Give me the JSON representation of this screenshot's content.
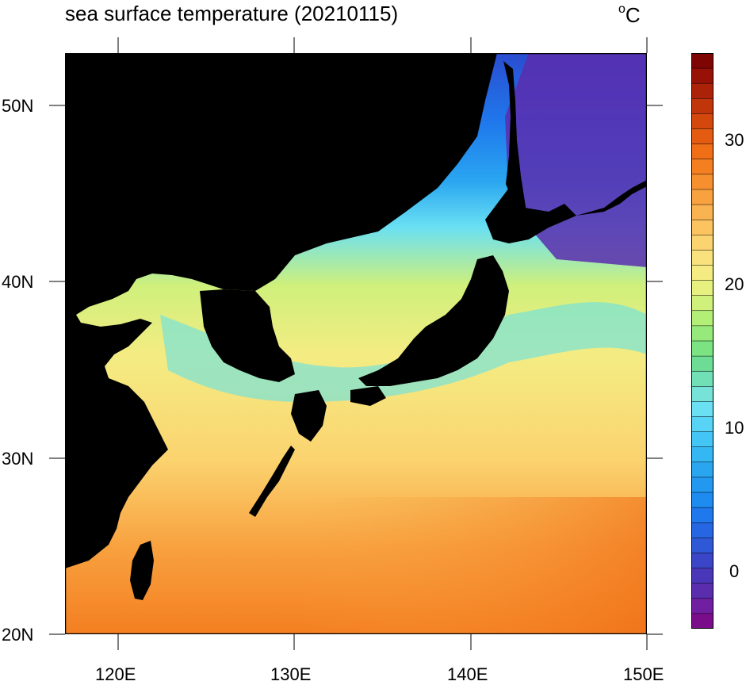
{
  "title": "sea surface temperature (20210115)",
  "units": "C",
  "units_prefix": "o",
  "lon_labels": [
    "120E",
    "130E",
    "140E",
    "150E"
  ],
  "lat_labels": [
    "50N",
    "40N",
    "30N",
    "20N"
  ],
  "colorbar": {
    "min": -4,
    "max": 36,
    "ticks": [
      "30",
      "20",
      "10",
      "0"
    ],
    "colors": [
      "#7a0d8a",
      "#6f1fa0",
      "#5a2dae",
      "#4a36b9",
      "#3a45c7",
      "#2f58d6",
      "#2666e2",
      "#1f78ec",
      "#1d8bf0",
      "#2298f0",
      "#2aa6f1",
      "#34b7f3",
      "#43c5f5",
      "#56d3f5",
      "#6ae0f2",
      "#77e3d8",
      "#72e0b6",
      "#6ddd96",
      "#7be381",
      "#96ea7b",
      "#b3ee77",
      "#cff07b",
      "#e6f07f",
      "#f4ec83",
      "#f9e17d",
      "#fbd36f",
      "#fbc460",
      "#f9b350",
      "#f8a13f",
      "#f6902f",
      "#f47f21",
      "#f06e16",
      "#e45c12",
      "#d4480e",
      "#c1350b",
      "#ac2208",
      "#971106",
      "#7f0404"
    ]
  },
  "map": {
    "lon_range": [
      117,
      150
    ],
    "lat_range": [
      20,
      53
    ],
    "land_color": "#000000",
    "frame_color": "#000000"
  }
}
